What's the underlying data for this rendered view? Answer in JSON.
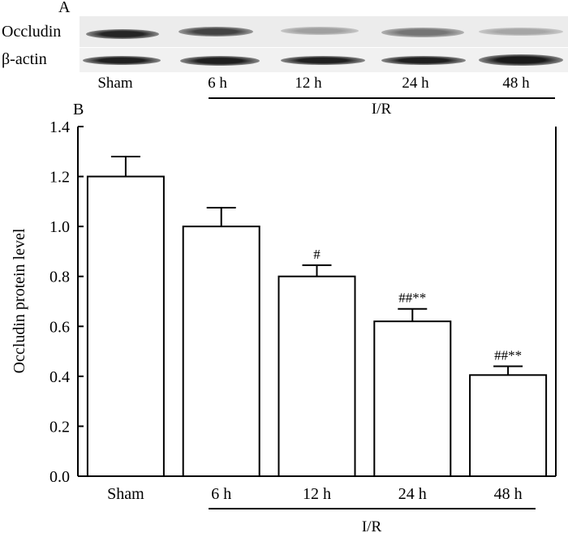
{
  "panel_a": {
    "label": "A",
    "rows": [
      {
        "label": "Occludin",
        "intensities": [
          0.92,
          0.78,
          0.35,
          0.55,
          0.32
        ]
      },
      {
        "label": "β-actin",
        "intensities": [
          0.95,
          0.95,
          0.95,
          0.95,
          0.97
        ]
      }
    ],
    "lanes": [
      "Sham",
      "6 h",
      "12 h",
      "24 h",
      "48 h"
    ],
    "group_label": "I/R"
  },
  "panel_b": {
    "label": "B",
    "group_label": "I/R"
  },
  "chart_data": {
    "type": "bar",
    "categories": [
      "Sham",
      "6 h",
      "12 h",
      "24 h",
      "48 h"
    ],
    "values": [
      1.2,
      1.0,
      0.8,
      0.62,
      0.405
    ],
    "error": [
      0.08,
      0.075,
      0.045,
      0.05,
      0.035
    ],
    "annotations": [
      "",
      "",
      "#",
      "##**",
      "##**"
    ],
    "ylabel": "Occludin protein level",
    "xlabel": "",
    "ylim": [
      0.0,
      1.4
    ],
    "yticks": [
      0.0,
      0.2,
      0.4,
      0.6,
      0.8,
      1.0,
      1.2,
      1.4
    ],
    "ytick_labels": [
      "0.0",
      "0.2",
      "0.4",
      "0.6",
      "0.8",
      "1.0",
      "1.2",
      "1.4"
    ],
    "grid": false,
    "bar_fill": "#ffffff",
    "bar_stroke": "#000000"
  }
}
